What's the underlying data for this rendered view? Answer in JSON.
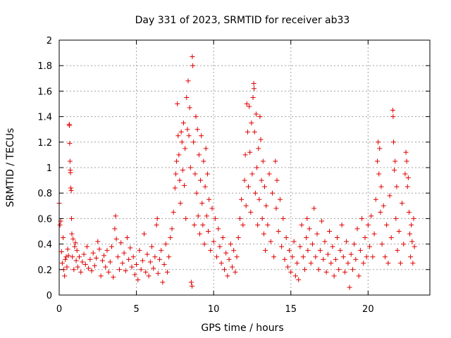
{
  "chart_data": {
    "type": "scatter",
    "title": "Day 331 of 2023, SRMTID for receiver ab33",
    "xlabel": "GPS time / hours",
    "ylabel": "SRMTID / TECUs",
    "xlim": [
      0,
      24
    ],
    "ylim": [
      0,
      2
    ],
    "x_ticks": [
      0,
      5,
      10,
      15,
      20
    ],
    "x_tick_labels": [
      "0",
      "5",
      "10",
      "15",
      "20"
    ],
    "y_ticks": [
      0,
      0.2,
      0.4,
      0.6,
      0.8,
      1,
      1.2,
      1.4,
      1.6,
      1.8,
      2
    ],
    "y_tick_labels": [
      "0",
      "0.2",
      "0.4",
      "0.6",
      "0.8",
      "1",
      "1.2",
      "1.4",
      "1.6",
      "1.8",
      "2"
    ],
    "grid": true,
    "marker": "+",
    "color": "#e00000",
    "x_data_range": [
      0,
      23
    ],
    "series": [
      {
        "name": "SRMTID",
        "points": [
          [
            0.0,
            0.72
          ],
          [
            0.05,
            0.55
          ],
          [
            0.1,
            0.58
          ],
          [
            0.15,
            0.34
          ],
          [
            0.2,
            0.25
          ],
          [
            0.25,
            0.45
          ],
          [
            0.3,
            0.2
          ],
          [
            0.35,
            0.15
          ],
          [
            0.4,
            0.28
          ],
          [
            0.45,
            0.3
          ],
          [
            0.5,
            0.22
          ],
          [
            0.55,
            0.36
          ],
          [
            0.6,
            0.31
          ],
          [
            0.65,
            1.34
          ],
          [
            0.66,
            1.33
          ],
          [
            0.68,
            1.19
          ],
          [
            0.7,
            1.05
          ],
          [
            0.72,
            0.98
          ],
          [
            0.73,
            0.96
          ],
          [
            0.75,
            0.84
          ],
          [
            0.78,
            0.82
          ],
          [
            0.8,
            0.6
          ],
          [
            0.82,
            0.48
          ],
          [
            0.85,
            0.3
          ],
          [
            0.9,
            0.44
          ],
          [
            0.95,
            0.2
          ],
          [
            1.0,
            0.38
          ],
          [
            1.05,
            0.41
          ],
          [
            1.1,
            0.27
          ],
          [
            1.15,
            0.35
          ],
          [
            1.2,
            0.22
          ],
          [
            1.3,
            0.3
          ],
          [
            1.4,
            0.18
          ],
          [
            1.5,
            0.26
          ],
          [
            1.6,
            0.32
          ],
          [
            1.7,
            0.24
          ],
          [
            1.8,
            0.38
          ],
          [
            1.9,
            0.21
          ],
          [
            2.0,
            0.28
          ],
          [
            2.1,
            0.19
          ],
          [
            2.2,
            0.33
          ],
          [
            2.3,
            0.23
          ],
          [
            2.4,
            0.29
          ],
          [
            2.5,
            0.42
          ],
          [
            2.6,
            0.36
          ],
          [
            2.7,
            0.15
          ],
          [
            2.8,
            0.27
          ],
          [
            2.9,
            0.31
          ],
          [
            3.0,
            0.22
          ],
          [
            3.1,
            0.35
          ],
          [
            3.2,
            0.18
          ],
          [
            3.3,
            0.26
          ],
          [
            3.4,
            0.38
          ],
          [
            3.5,
            0.14
          ],
          [
            3.6,
            0.52
          ],
          [
            3.65,
            0.62
          ],
          [
            3.7,
            0.44
          ],
          [
            3.8,
            0.3
          ],
          [
            3.9,
            0.2
          ],
          [
            4.0,
            0.41
          ],
          [
            4.1,
            0.25
          ],
          [
            4.2,
            0.33
          ],
          [
            4.3,
            0.19
          ],
          [
            4.4,
            0.45
          ],
          [
            4.5,
            0.28
          ],
          [
            4.6,
            0.37
          ],
          [
            4.7,
            0.22
          ],
          [
            4.8,
            0.3
          ],
          [
            4.9,
            0.16
          ],
          [
            5.0,
            0.24
          ],
          [
            5.1,
            0.12
          ],
          [
            5.2,
            0.35
          ],
          [
            5.3,
            0.2
          ],
          [
            5.4,
            0.27
          ],
          [
            5.5,
            0.48
          ],
          [
            5.6,
            0.18
          ],
          [
            5.7,
            0.32
          ],
          [
            5.8,
            0.15
          ],
          [
            5.9,
            0.26
          ],
          [
            6.0,
            0.38
          ],
          [
            6.1,
            0.21
          ],
          [
            6.2,
            0.3
          ],
          [
            6.3,
            0.55
          ],
          [
            6.35,
            0.6
          ],
          [
            6.4,
            0.17
          ],
          [
            6.5,
            0.28
          ],
          [
            6.6,
            0.35
          ],
          [
            6.7,
            0.1
          ],
          [
            6.8,
            0.24
          ],
          [
            6.9,
            0.4
          ],
          [
            7.0,
            0.18
          ],
          [
            7.1,
            0.3
          ],
          [
            7.2,
            0.45
          ],
          [
            7.3,
            0.52
          ],
          [
            7.4,
            0.65
          ],
          [
            7.5,
            0.84
          ],
          [
            7.55,
            0.95
          ],
          [
            7.6,
            1.05
          ],
          [
            7.65,
            1.5
          ],
          [
            7.7,
            1.25
          ],
          [
            7.75,
            1.1
          ],
          [
            7.8,
            0.9
          ],
          [
            7.85,
            0.72
          ],
          [
            7.9,
            1.28
          ],
          [
            7.95,
            1.2
          ],
          [
            8.0,
            0.98
          ],
          [
            8.05,
            1.35
          ],
          [
            8.1,
            0.86
          ],
          [
            8.15,
            1.15
          ],
          [
            8.2,
            0.6
          ],
          [
            8.25,
            1.55
          ],
          [
            8.3,
            1.3
          ],
          [
            8.35,
            1.68
          ],
          [
            8.4,
            1.25
          ],
          [
            8.45,
            1.47
          ],
          [
            8.5,
            1.0
          ],
          [
            8.55,
            0.1
          ],
          [
            8.6,
            0.07
          ],
          [
            8.62,
            1.87
          ],
          [
            8.65,
            1.8
          ],
          [
            8.7,
            1.2
          ],
          [
            8.75,
            0.55
          ],
          [
            8.8,
            0.95
          ],
          [
            8.85,
            1.4
          ],
          [
            8.9,
            0.8
          ],
          [
            8.95,
            1.3
          ],
          [
            9.0,
            0.62
          ],
          [
            9.05,
            1.1
          ],
          [
            9.1,
            0.48
          ],
          [
            9.15,
            0.9
          ],
          [
            9.2,
            1.25
          ],
          [
            9.25,
            0.72
          ],
          [
            9.3,
            0.55
          ],
          [
            9.35,
            1.05
          ],
          [
            9.4,
            0.4
          ],
          [
            9.45,
            0.85
          ],
          [
            9.5,
            1.15
          ],
          [
            9.55,
            0.62
          ],
          [
            9.6,
            0.95
          ],
          [
            9.65,
            0.5
          ],
          [
            9.7,
            0.75
          ],
          [
            9.8,
            0.35
          ],
          [
            9.9,
            0.68
          ],
          [
            10.0,
            0.42
          ],
          [
            10.1,
            0.6
          ],
          [
            10.2,
            0.3
          ],
          [
            10.3,
            0.52
          ],
          [
            10.4,
            0.38
          ],
          [
            10.5,
            0.25
          ],
          [
            10.6,
            0.45
          ],
          [
            10.7,
            0.2
          ],
          [
            10.8,
            0.33
          ],
          [
            10.9,
            0.15
          ],
          [
            11.0,
            0.28
          ],
          [
            11.1,
            0.4
          ],
          [
            11.2,
            0.22
          ],
          [
            11.3,
            0.35
          ],
          [
            11.4,
            0.18
          ],
          [
            11.5,
            0.3
          ],
          [
            11.6,
            0.45
          ],
          [
            11.7,
            0.6
          ],
          [
            11.8,
            0.75
          ],
          [
            11.9,
            0.55
          ],
          [
            12.0,
            0.9
          ],
          [
            12.05,
            1.1
          ],
          [
            12.1,
            0.7
          ],
          [
            12.15,
            1.5
          ],
          [
            12.2,
            1.28
          ],
          [
            12.25,
            0.85
          ],
          [
            12.3,
            1.48
          ],
          [
            12.35,
            1.12
          ],
          [
            12.4,
            0.65
          ],
          [
            12.45,
            1.35
          ],
          [
            12.5,
            0.95
          ],
          [
            12.55,
            1.55
          ],
          [
            12.6,
            1.66
          ],
          [
            12.62,
            1.62
          ],
          [
            12.65,
            1.28
          ],
          [
            12.7,
            0.8
          ],
          [
            12.75,
            1.42
          ],
          [
            12.8,
            1.0
          ],
          [
            12.85,
            0.55
          ],
          [
            12.9,
            1.15
          ],
          [
            12.95,
            0.75
          ],
          [
            13.0,
            1.4
          ],
          [
            13.05,
            1.22
          ],
          [
            13.1,
            0.9
          ],
          [
            13.15,
            0.6
          ],
          [
            13.2,
            1.05
          ],
          [
            13.25,
            0.48
          ],
          [
            13.3,
            0.85
          ],
          [
            13.35,
            0.35
          ],
          [
            13.4,
            0.7
          ],
          [
            13.5,
            0.55
          ],
          [
            13.6,
            0.95
          ],
          [
            13.7,
            0.42
          ],
          [
            13.8,
            0.8
          ],
          [
            13.9,
            0.3
          ],
          [
            14.0,
            1.05
          ],
          [
            14.05,
            0.68
          ],
          [
            14.1,
            0.9
          ],
          [
            14.2,
            0.5
          ],
          [
            14.3,
            0.75
          ],
          [
            14.4,
            0.38
          ],
          [
            14.5,
            0.6
          ],
          [
            14.6,
            0.28
          ],
          [
            14.7,
            0.45
          ],
          [
            14.8,
            0.22
          ],
          [
            14.9,
            0.35
          ],
          [
            15.0,
            0.18
          ],
          [
            15.1,
            0.3
          ],
          [
            15.2,
            0.42
          ],
          [
            15.3,
            0.15
          ],
          [
            15.4,
            0.25
          ],
          [
            15.5,
            0.12
          ],
          [
            15.6,
            0.38
          ],
          [
            15.7,
            0.55
          ],
          [
            15.8,
            0.3
          ],
          [
            15.9,
            0.2
          ],
          [
            16.0,
            0.45
          ],
          [
            16.05,
            0.6
          ],
          [
            16.1,
            0.35
          ],
          [
            16.2,
            0.52
          ],
          [
            16.3,
            0.25
          ],
          [
            16.4,
            0.4
          ],
          [
            16.5,
            0.68
          ],
          [
            16.6,
            0.3
          ],
          [
            16.7,
            0.48
          ],
          [
            16.8,
            0.2
          ],
          [
            16.9,
            0.35
          ],
          [
            17.0,
            0.58
          ],
          [
            17.1,
            0.28
          ],
          [
            17.2,
            0.42
          ],
          [
            17.3,
            0.18
          ],
          [
            17.4,
            0.32
          ],
          [
            17.5,
            0.5
          ],
          [
            17.6,
            0.25
          ],
          [
            17.7,
            0.38
          ],
          [
            17.8,
            0.15
          ],
          [
            17.9,
            0.28
          ],
          [
            18.0,
            0.45
          ],
          [
            18.1,
            0.2
          ],
          [
            18.2,
            0.35
          ],
          [
            18.3,
            0.55
          ],
          [
            18.4,
            0.3
          ],
          [
            18.5,
            0.18
          ],
          [
            18.6,
            0.42
          ],
          [
            18.7,
            0.25
          ],
          [
            18.8,
            0.06
          ],
          [
            18.9,
            0.32
          ],
          [
            19.0,
            0.2
          ],
          [
            19.1,
            0.4
          ],
          [
            19.2,
            0.28
          ],
          [
            19.3,
            0.52
          ],
          [
            19.4,
            0.15
          ],
          [
            19.5,
            0.35
          ],
          [
            19.6,
            0.6
          ],
          [
            19.7,
            0.25
          ],
          [
            19.8,
            0.45
          ],
          [
            19.9,
            0.3
          ],
          [
            20.0,
            0.55
          ],
          [
            20.1,
            0.38
          ],
          [
            20.2,
            0.62
          ],
          [
            20.3,
            0.3
          ],
          [
            20.4,
            0.48
          ],
          [
            20.5,
            0.75
          ],
          [
            20.6,
            1.05
          ],
          [
            20.65,
            1.2
          ],
          [
            20.7,
            0.95
          ],
          [
            20.75,
            1.15
          ],
          [
            20.8,
            0.65
          ],
          [
            20.85,
            0.85
          ],
          [
            20.9,
            0.4
          ],
          [
            21.0,
            0.7
          ],
          [
            21.1,
            0.3
          ],
          [
            21.2,
            0.55
          ],
          [
            21.3,
            0.25
          ],
          [
            21.4,
            0.78
          ],
          [
            21.5,
            0.45
          ],
          [
            21.6,
            1.45
          ],
          [
            21.62,
            1.4
          ],
          [
            21.65,
            1.2
          ],
          [
            21.7,
            0.98
          ],
          [
            21.75,
            1.05
          ],
          [
            21.8,
            0.6
          ],
          [
            21.85,
            0.85
          ],
          [
            21.9,
            0.35
          ],
          [
            22.0,
            0.5
          ],
          [
            22.1,
            0.25
          ],
          [
            22.2,
            0.72
          ],
          [
            22.3,
            0.4
          ],
          [
            22.4,
            0.95
          ],
          [
            22.45,
            1.12
          ],
          [
            22.5,
            1.05
          ],
          [
            22.55,
            0.85
          ],
          [
            22.6,
            0.92
          ],
          [
            22.65,
            0.65
          ],
          [
            22.7,
            0.48
          ],
          [
            22.75,
            0.3
          ],
          [
            22.8,
            0.55
          ],
          [
            22.85,
            0.42
          ],
          [
            22.9,
            0.25
          ],
          [
            22.95,
            0.6
          ],
          [
            23.0,
            0.38
          ]
        ]
      }
    ]
  }
}
